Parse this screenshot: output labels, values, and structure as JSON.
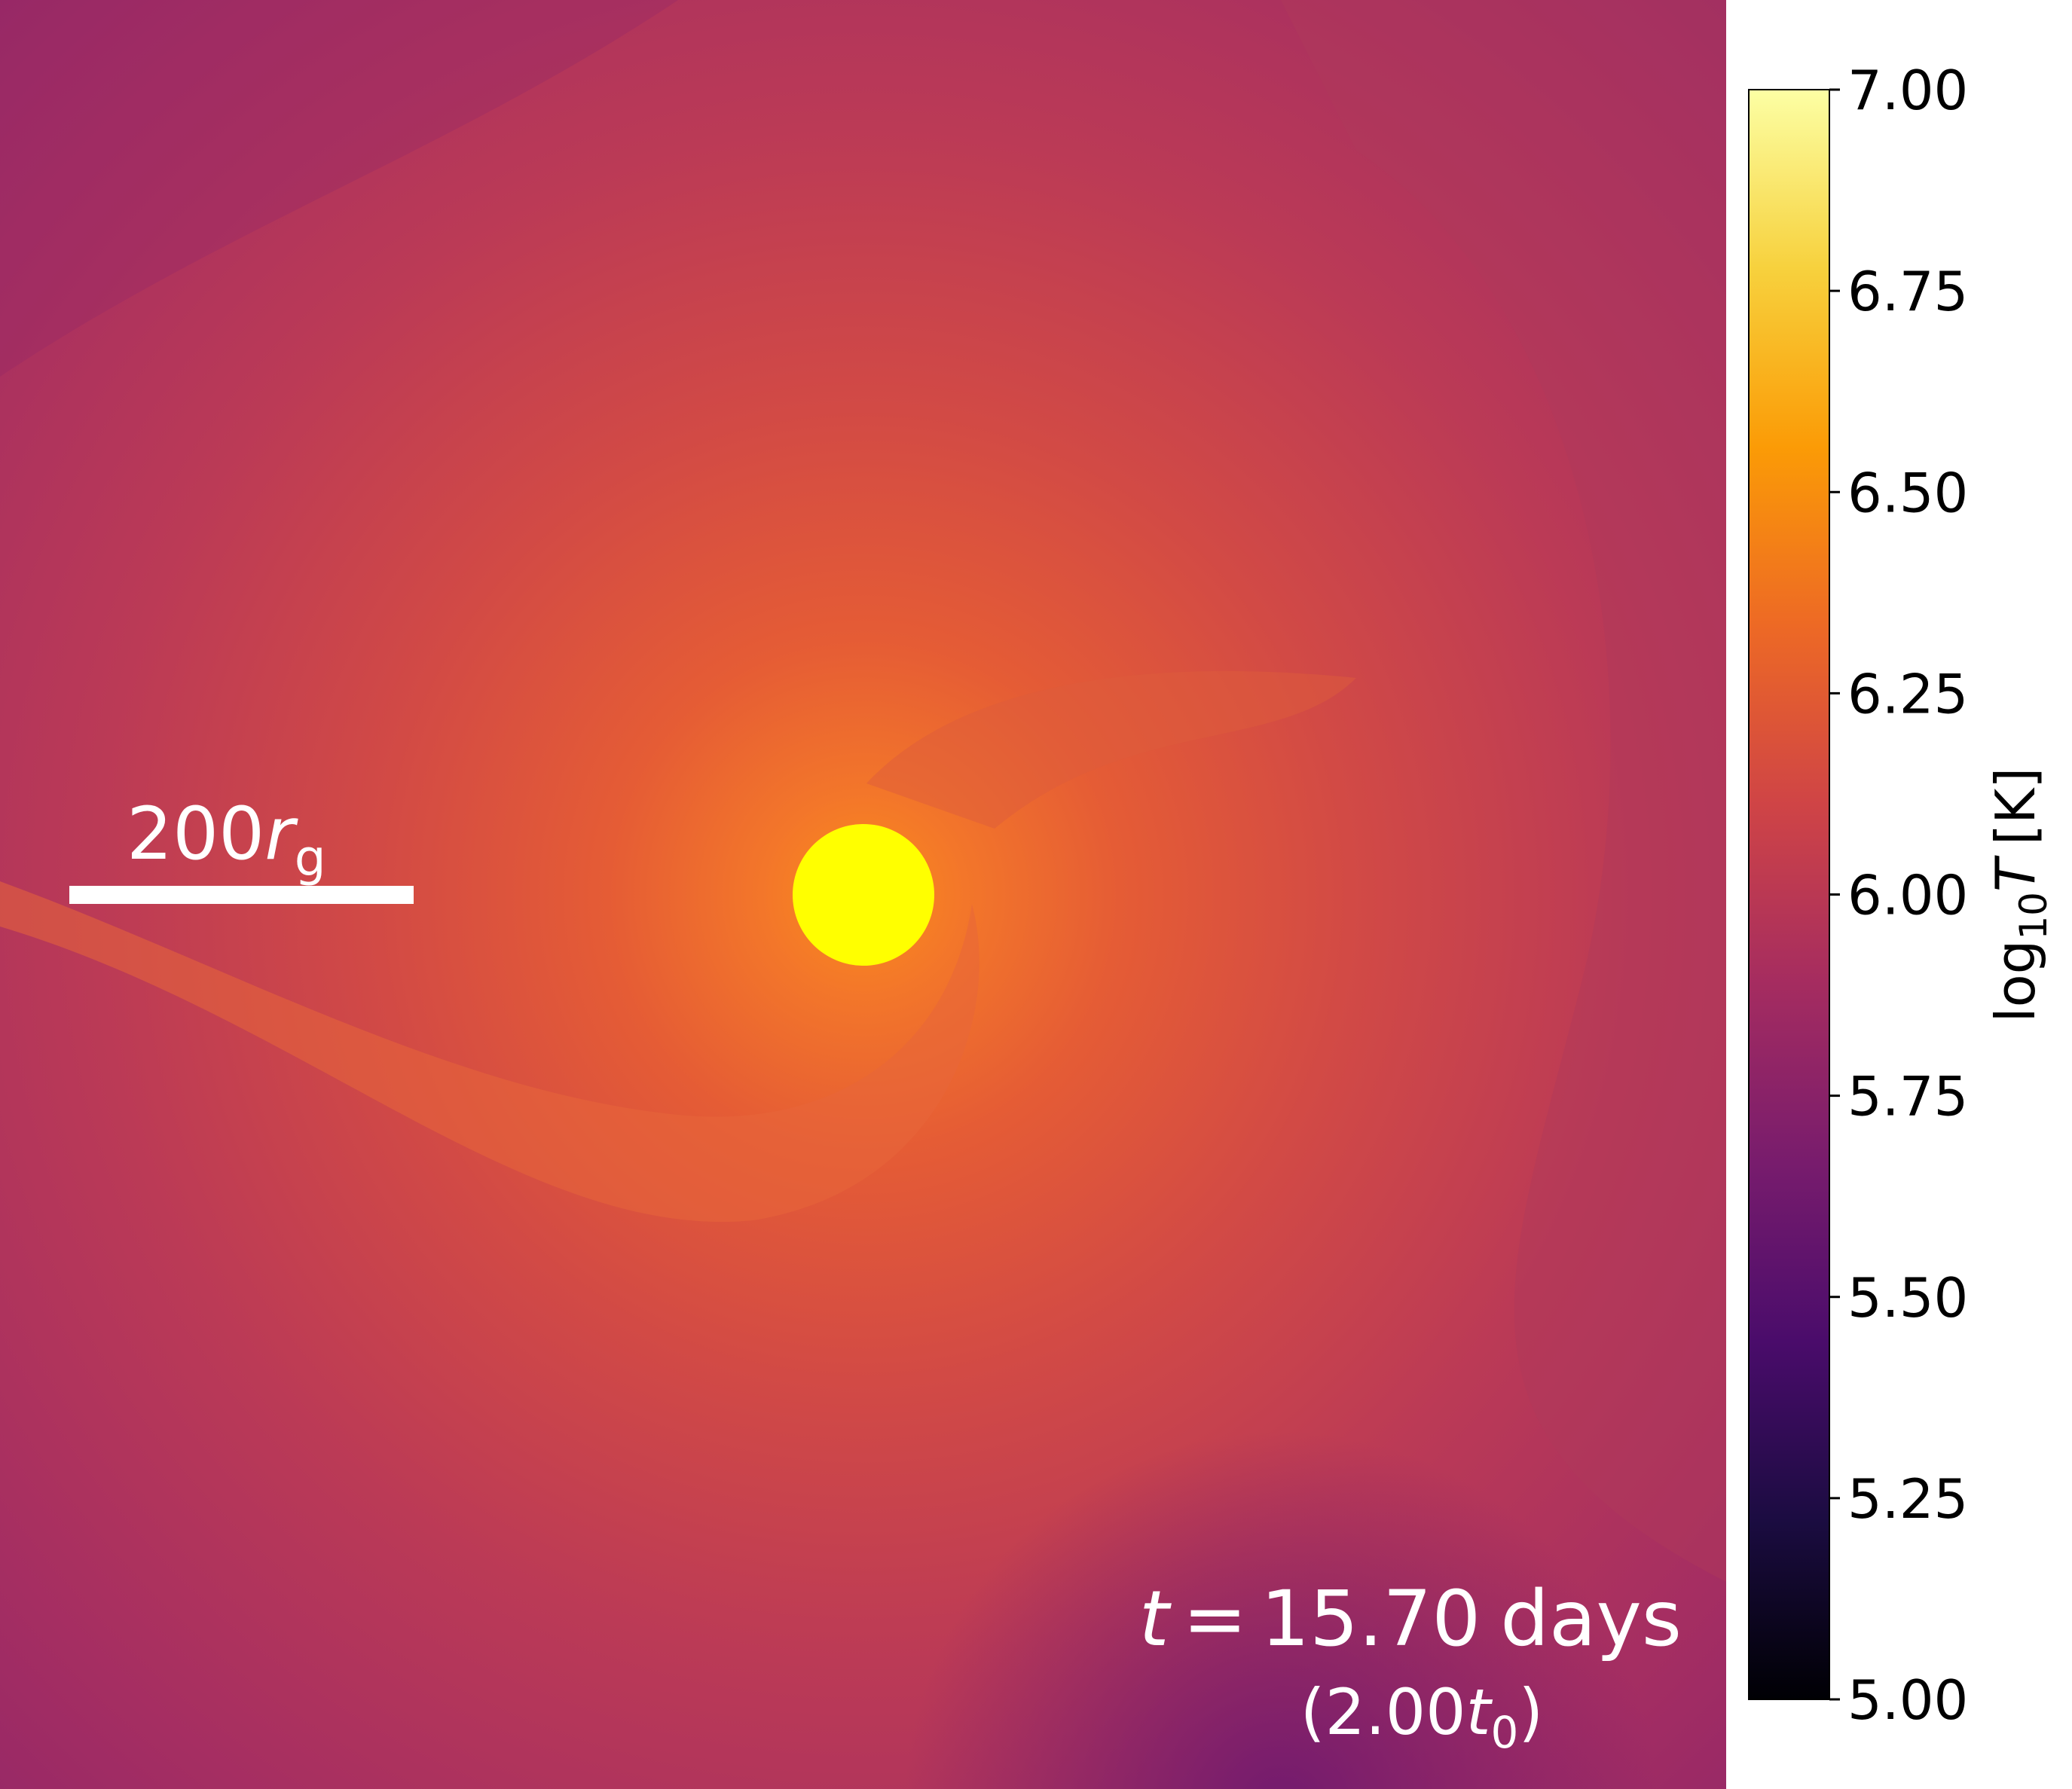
{
  "chart_data": {
    "type": "heatmap",
    "colormap": [
      "#000004",
      "#1b0c41",
      "#4a0c6b",
      "#781c6d",
      "#a52c60",
      "#cf4446",
      "#ed6925",
      "#fb9b06",
      "#f7d13d",
      "#fcffa4"
    ],
    "colorbar_label": {
      "prefix": "log",
      "subscript": "10",
      "symbol": "T",
      "unit": "[K]"
    },
    "clim": [
      5,
      7
    ],
    "colorbar_ticks": [
      {
        "value": 5,
        "label": "5.00"
      },
      {
        "value": 5.25,
        "label": "5.25"
      },
      {
        "value": 5.5,
        "label": "5.50"
      },
      {
        "value": 5.75,
        "label": "5.75"
      },
      {
        "value": 6,
        "label": "6.00"
      },
      {
        "value": 6.25,
        "label": "6.25"
      },
      {
        "value": 6.5,
        "label": "6.50"
      },
      {
        "value": 6.75,
        "label": "6.75"
      },
      {
        "value": 7,
        "label": "7.00"
      }
    ],
    "scale_bar_label": {
      "number": "200",
      "symbol": "r",
      "subscript": "g"
    },
    "time_label": {
      "symbol": "t",
      "equals": "=",
      "value": "15.70",
      "unit": "days"
    },
    "time_ratio_label": {
      "open": "(",
      "value": "2.00",
      "symbol": "t",
      "subscript": "0",
      "close": ")"
    }
  }
}
